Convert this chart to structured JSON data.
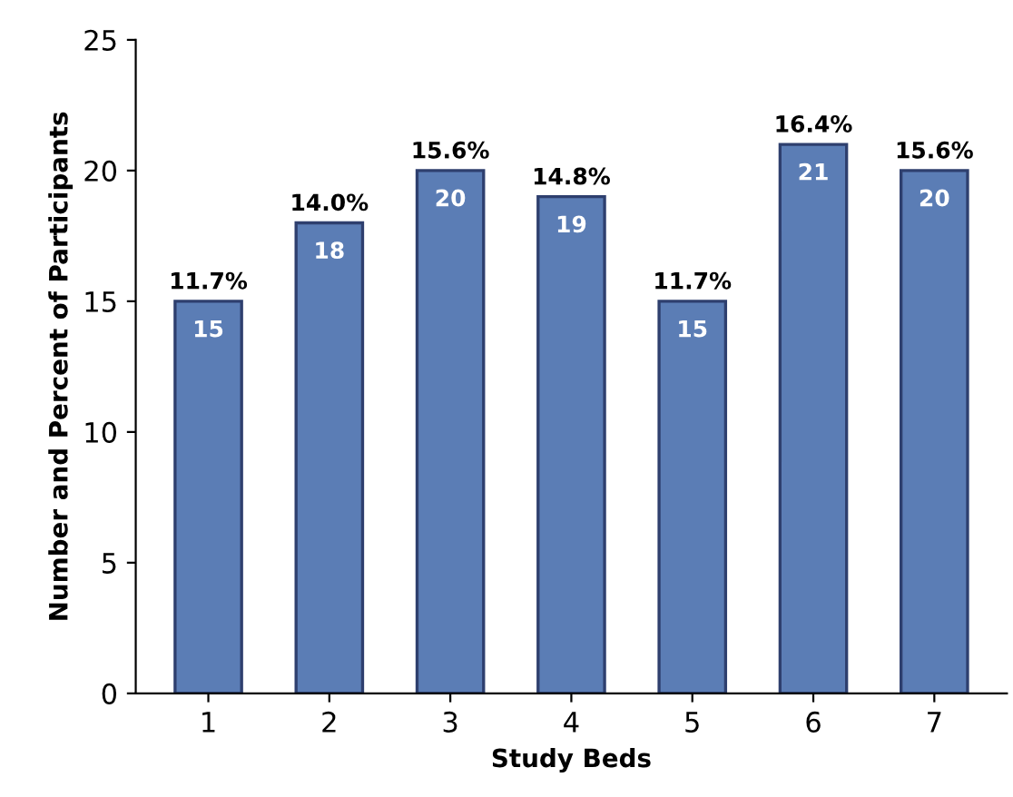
{
  "chart_data": {
    "type": "bar",
    "xlabel": "Study Beds",
    "ylabel": "Number and Percent of Participants",
    "categories": [
      "1",
      "2",
      "3",
      "4",
      "5",
      "6",
      "7"
    ],
    "values": [
      15,
      18,
      20,
      19,
      15,
      21,
      20
    ],
    "data_labels": true,
    "color": "#5b7db5",
    "annotations": [
      {
        "text": "11.7%",
        "x": "1",
        "y": 15
      },
      {
        "text": "14.0%",
        "x": "2",
        "y": 18
      },
      {
        "text": "15.6%",
        "x": "3",
        "y": 20
      },
      {
        "text": "14.8%",
        "x": "4",
        "y": 19
      },
      {
        "text": "11.7%",
        "x": "5",
        "y": 15
      },
      {
        "text": "16.4%",
        "x": "6",
        "y": 21
      },
      {
        "text": "15.6%",
        "x": "7",
        "y": 20
      }
    ],
    "ylim": [
      0,
      25
    ],
    "yticks": [
      0,
      5,
      10,
      15,
      20,
      25
    ],
    "grid": false
  }
}
